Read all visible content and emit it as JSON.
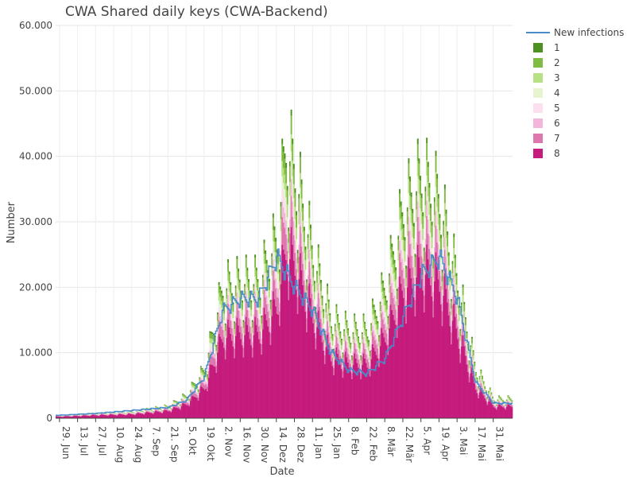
{
  "chart_data": {
    "type": "bar",
    "stacked": true,
    "title": "CWA Shared daily keys (CWA-Backend)",
    "xlabel": "Date",
    "ylabel": "Number",
    "ylim": [
      0,
      60000
    ],
    "y_ticks": [
      0,
      10000,
      20000,
      30000,
      40000,
      50000,
      60000
    ],
    "y_tick_labels": [
      "0",
      "10.000",
      "20.000",
      "30.000",
      "40.000",
      "50.000",
      "60.000"
    ],
    "x_ticks": [
      "29. Jun",
      "13. Jul",
      "27. Jul",
      "10. Aug",
      "24. Aug",
      "7. Sep",
      "21. Sep",
      "5. Okt",
      "19. Okt",
      "2. Nov",
      "16. Nov",
      "30. Nov",
      "14. Dez",
      "28. Dez",
      "11. Jan",
      "25. Jan",
      "8. Feb",
      "22. Feb",
      "8. Mär",
      "22. Mär",
      "5. Apr",
      "19. Apr",
      "3. Mai",
      "17. Mai",
      "31. Mai"
    ],
    "x_tick_offset_days": 3,
    "tick_interval_days": 14,
    "num_days": 354,
    "grid": true,
    "legend_position": "top-right",
    "envelope_dates": [
      "29. Jun",
      "27. Jul",
      "24. Aug",
      "21. Sep",
      "5. Okt",
      "19. Okt",
      "2. Nov",
      "16. Nov",
      "30. Nov",
      "14. Dez",
      "21. Dez",
      "28. Dez",
      "11. Jan",
      "25. Jan",
      "8. Feb",
      "22. Feb",
      "8. Mär",
      "22. Mär",
      "5. Apr",
      "19. Apr",
      "3. Mai",
      "17. Mai",
      "31. Mai"
    ],
    "envelope_values": [
      500,
      900,
      1200,
      2200,
      4200,
      9000,
      24000,
      25000,
      25000,
      33000,
      50000,
      45000,
      30000,
      18000,
      16000,
      16000,
      24000,
      38000,
      44000,
      40000,
      25000,
      9000,
      3500
    ],
    "new_infections_dates": [
      "29. Jun",
      "27. Jul",
      "24. Aug",
      "21. Sep",
      "5. Okt",
      "19. Okt",
      "2. Nov",
      "16. Nov",
      "30. Nov",
      "14. Dez",
      "28. Dez",
      "11. Jan",
      "25. Jan",
      "8. Feb",
      "22. Feb",
      "8. Mär",
      "22. Mär",
      "5. Apr",
      "19. Apr",
      "3. Mai",
      "17. Mai",
      "31. Mai"
    ],
    "new_infections_values": [
      500,
      800,
      1300,
      1800,
      3000,
      7000,
      18000,
      20000,
      20000,
      27000,
      22000,
      18000,
      11000,
      8000,
      7500,
      10000,
      17000,
      24000,
      27000,
      20000,
      6000,
      2500
    ],
    "weekday_factors": [
      1.0,
      0.92,
      0.85,
      0.78,
      0.72,
      0.6,
      0.82
    ],
    "stack_shares": [
      0.62,
      0.1,
      0.055,
      0.045,
      0.045,
      0.055,
      0.06,
      0.02
    ],
    "series": [
      {
        "name": "8",
        "color": "#c51b7d"
      },
      {
        "name": "7",
        "color": "#de77ae"
      },
      {
        "name": "6",
        "color": "#f1b6da"
      },
      {
        "name": "5",
        "color": "#fde0ef"
      },
      {
        "name": "4",
        "color": "#e6f5d0"
      },
      {
        "name": "3",
        "color": "#b8e186"
      },
      {
        "name": "2",
        "color": "#7fbc41"
      },
      {
        "name": "1",
        "color": "#4d9221"
      }
    ],
    "line_series": {
      "name": "New infections",
      "color": "#4a8bc9"
    },
    "legend": [
      "New infections",
      "1",
      "2",
      "3",
      "4",
      "5",
      "6",
      "7",
      "8"
    ]
  }
}
